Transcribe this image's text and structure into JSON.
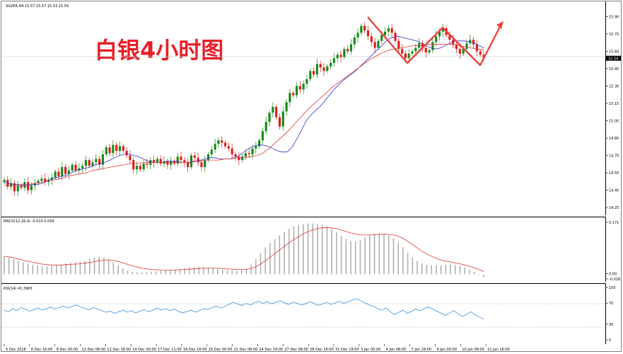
{
  "header": {
    "symbol_line": "SILVER,H4  15.57 15.57 15.53 15.54",
    "title_overlay": "白银4小时图",
    "current_price": "15.54"
  },
  "colors": {
    "bull": "#1a8a1a",
    "bear": "#e01e1e",
    "ma_fast": "#3333cc",
    "ma_slow": "#e03a3a",
    "macd_hist": "#b0b0b0",
    "macd_signal": "#e03a3a",
    "rsi_line": "#3b8fd8",
    "arrow": "#e8433d",
    "title": "#e8202a"
  },
  "chart_data": [
    {
      "type": "candlestick",
      "name": "price",
      "y_ticks": [
        "15.90",
        "15.75",
        "15.60",
        "15.45",
        "15.30",
        "15.15",
        "15.00",
        "14.85",
        "14.70",
        "14.55",
        "14.40",
        "14.25"
      ],
      "ylim": [
        14.22,
        15.97
      ],
      "close": [
        14.49,
        14.43,
        14.46,
        14.39,
        14.44,
        14.42,
        14.47,
        14.4,
        14.44,
        14.46,
        14.48,
        14.5,
        14.47,
        14.49,
        14.51,
        14.56,
        14.52,
        14.6,
        14.54,
        14.57,
        14.62,
        14.57,
        14.59,
        14.61,
        14.66,
        14.61,
        14.64,
        14.67,
        14.62,
        14.71,
        14.77,
        14.72,
        14.79,
        14.74,
        14.78,
        14.74,
        14.7,
        14.66,
        14.58,
        14.61,
        14.58,
        14.63,
        14.62,
        14.66,
        14.64,
        14.67,
        14.63,
        14.65,
        14.62,
        14.65,
        14.63,
        14.69,
        14.66,
        14.64,
        14.6,
        14.7,
        14.68,
        14.64,
        14.6,
        14.66,
        14.71,
        14.75,
        14.8,
        14.83,
        14.81,
        14.78,
        14.76,
        14.71,
        14.69,
        14.66,
        14.69,
        14.72,
        14.71,
        14.76,
        14.78,
        14.83,
        14.91,
        14.99,
        15.07,
        15.12,
        15.03,
        14.95,
        15.08,
        15.16,
        15.24,
        15.22,
        15.3,
        15.27,
        15.32,
        15.36,
        15.43,
        15.4,
        15.49,
        15.46,
        15.43,
        15.47,
        15.5,
        15.54,
        15.57,
        15.55,
        15.62,
        15.6,
        15.66,
        15.72,
        15.76,
        15.82,
        15.78,
        15.73,
        15.68,
        15.63,
        15.69,
        15.74,
        15.77,
        15.8,
        15.76,
        15.69,
        15.62,
        15.58,
        15.54,
        15.58,
        15.6,
        15.63,
        15.67,
        15.63,
        15.59,
        15.61,
        15.68,
        15.73,
        15.77,
        15.8,
        15.74,
        15.7,
        15.66,
        15.62,
        15.58,
        15.62,
        15.67,
        15.7,
        15.66,
        15.6,
        15.57,
        15.54
      ],
      "ma_fast": [
        14.47,
        14.46,
        14.45,
        14.45,
        14.44,
        14.44,
        14.45,
        14.45,
        14.46,
        14.48,
        14.5,
        14.51,
        14.52,
        14.53,
        14.55,
        14.57,
        14.58,
        14.59,
        14.6,
        14.62,
        14.63,
        14.64,
        14.66,
        14.68,
        14.7,
        14.71,
        14.71,
        14.7,
        14.69,
        14.67,
        14.65,
        14.64,
        14.64,
        14.64,
        14.65,
        14.65,
        14.65,
        14.64,
        14.64,
        14.64,
        14.65,
        14.66,
        14.67,
        14.68,
        14.68,
        14.67,
        14.67,
        14.67,
        14.68,
        14.7,
        14.73,
        14.76,
        14.78,
        14.79,
        14.79,
        14.78,
        14.76,
        14.74,
        14.73,
        14.73,
        14.77,
        14.84,
        14.92,
        15.0,
        15.05,
        15.09,
        15.13,
        15.18,
        15.23,
        15.28,
        15.32,
        15.36,
        15.39,
        15.42,
        15.46,
        15.5,
        15.54,
        15.58,
        15.62,
        15.66,
        15.7,
        15.72,
        15.73,
        15.72,
        15.71,
        15.7,
        15.69,
        15.67,
        15.65,
        15.63,
        15.62,
        15.63,
        15.65,
        15.67,
        15.69,
        15.69,
        15.69,
        15.68,
        15.67,
        15.65,
        15.63
      ],
      "ma_slow": [
        14.44,
        14.44,
        14.44,
        14.45,
        14.45,
        14.46,
        14.47,
        14.48,
        14.49,
        14.5,
        14.52,
        14.53,
        14.54,
        14.55,
        14.57,
        14.58,
        14.59,
        14.6,
        14.61,
        14.62,
        14.63,
        14.63,
        14.64,
        14.64,
        14.64,
        14.64,
        14.64,
        14.64,
        14.64,
        14.64,
        14.65,
        14.65,
        14.66,
        14.66,
        14.66,
        14.67,
        14.67,
        14.68,
        14.68,
        14.69,
        14.7,
        14.72,
        14.76,
        14.81,
        14.86,
        14.91,
        14.97,
        15.03,
        15.09,
        15.14,
        15.19,
        15.24,
        15.29,
        15.33,
        15.37,
        15.41,
        15.45,
        15.49,
        15.53,
        15.56,
        15.59,
        15.61,
        15.62,
        15.63,
        15.64,
        15.65,
        15.65,
        15.66,
        15.66,
        15.66,
        15.66,
        15.66,
        15.65,
        15.64,
        15.63,
        15.62,
        15.61
      ]
    },
    {
      "type": "bar",
      "name": "MACD(12,26,9)",
      "label": "MACD(12,26,9) -0.010 0.009",
      "y_ticks": [
        "0.171",
        "0.00",
        "-0.018"
      ],
      "ylim": [
        -0.018,
        0.171
      ],
      "values": [
        0.06,
        0.055,
        0.05,
        0.045,
        0.04,
        0.036,
        0.032,
        0.029,
        0.027,
        0.026,
        0.028,
        0.03,
        0.033,
        0.036,
        0.038,
        0.04,
        0.042,
        0.045,
        0.05,
        0.056,
        0.058,
        0.056,
        0.05,
        0.04,
        0.03,
        0.02,
        0.012,
        0.008,
        0.006,
        0.006,
        0.007,
        0.008,
        0.01,
        0.012,
        0.013,
        0.014,
        0.016,
        0.018,
        0.02,
        0.022,
        0.024,
        0.025,
        0.024,
        0.022,
        0.02,
        0.018,
        0.015,
        0.013,
        0.012,
        0.012,
        0.014,
        0.02,
        0.032,
        0.05,
        0.07,
        0.09,
        0.105,
        0.118,
        0.13,
        0.142,
        0.152,
        0.16,
        0.165,
        0.168,
        0.17,
        0.17,
        0.168,
        0.165,
        0.16,
        0.152,
        0.14,
        0.128,
        0.118,
        0.112,
        0.11,
        0.115,
        0.124,
        0.132,
        0.136,
        0.138,
        0.136,
        0.13,
        0.12,
        0.106,
        0.09,
        0.072,
        0.056,
        0.044,
        0.036,
        0.032,
        0.03,
        0.03,
        0.031,
        0.032,
        0.033,
        0.032,
        0.028,
        0.022,
        0.015,
        0.008,
        -0.002,
        -0.01
      ],
      "signal": [
        0.06,
        0.058,
        0.055,
        0.051,
        0.047,
        0.043,
        0.04,
        0.037,
        0.034,
        0.032,
        0.031,
        0.031,
        0.031,
        0.032,
        0.033,
        0.034,
        0.035,
        0.037,
        0.039,
        0.042,
        0.045,
        0.047,
        0.048,
        0.046,
        0.043,
        0.038,
        0.033,
        0.028,
        0.024,
        0.02,
        0.018,
        0.016,
        0.015,
        0.014,
        0.014,
        0.014,
        0.014,
        0.015,
        0.016,
        0.017,
        0.018,
        0.019,
        0.02,
        0.02,
        0.02,
        0.02,
        0.019,
        0.018,
        0.017,
        0.016,
        0.016,
        0.016,
        0.019,
        0.025,
        0.034,
        0.045,
        0.057,
        0.069,
        0.081,
        0.093,
        0.105,
        0.116,
        0.126,
        0.135,
        0.142,
        0.148,
        0.152,
        0.155,
        0.156,
        0.155,
        0.152,
        0.148,
        0.143,
        0.138,
        0.134,
        0.132,
        0.131,
        0.131,
        0.132,
        0.133,
        0.134,
        0.133,
        0.131,
        0.127,
        0.12,
        0.11,
        0.099,
        0.088,
        0.077,
        0.068,
        0.06,
        0.053,
        0.048,
        0.044,
        0.041,
        0.038,
        0.035,
        0.031,
        0.027,
        0.022,
        0.016,
        0.009
      ]
    },
    {
      "type": "line",
      "name": "RSI(14)",
      "label": "RSI(14) 41.3965",
      "y_ticks": [
        "100",
        "70",
        "30",
        "0"
      ],
      "ylim": [
        0,
        100
      ],
      "values": [
        58,
        55,
        61,
        57,
        63,
        60,
        56,
        59,
        62,
        58,
        61,
        64,
        60,
        63,
        66,
        62,
        65,
        68,
        64,
        61,
        59,
        63,
        60,
        57,
        54,
        56,
        52,
        55,
        58,
        54,
        57,
        53,
        56,
        59,
        55,
        58,
        62,
        58,
        61,
        57,
        60,
        56,
        53,
        55,
        58,
        54,
        57,
        61,
        59,
        63,
        66,
        62,
        65,
        69,
        73,
        70,
        67,
        71,
        68,
        72,
        75,
        71,
        74,
        70,
        73,
        76,
        72,
        69,
        73,
        71,
        68,
        70,
        74,
        71,
        67,
        70,
        73,
        69,
        72,
        75,
        71,
        74,
        77,
        80,
        76,
        72,
        68,
        65,
        61,
        58,
        62,
        55,
        49,
        54,
        58,
        52,
        56,
        60,
        57,
        61,
        64,
        60,
        56,
        52,
        48,
        53,
        57,
        51,
        46,
        50,
        55,
        49,
        45,
        41
      ]
    }
  ],
  "time_axis": [
    "5 Dec 2018",
    "6 Dec 16:00",
    "8 Dec 00:00",
    "11 Dec 08:00",
    "12 Dec 16:00",
    "14 Dec 00:00",
    "17 Dec 11:00",
    "18 Dec 16:00",
    "20 Dec 00:00",
    "21 Dec 08:00",
    "24 Dec 19:00",
    "27 Dec 08:00",
    "28 Dec 16:00",
    "31 Dec 19:00",
    "3 Jan 00:00",
    "4 Jan 08:00",
    "7 Jan 19:00",
    "9 Jan 00:00",
    "10 Jan 08:00",
    "11 Jan 16:00"
  ]
}
